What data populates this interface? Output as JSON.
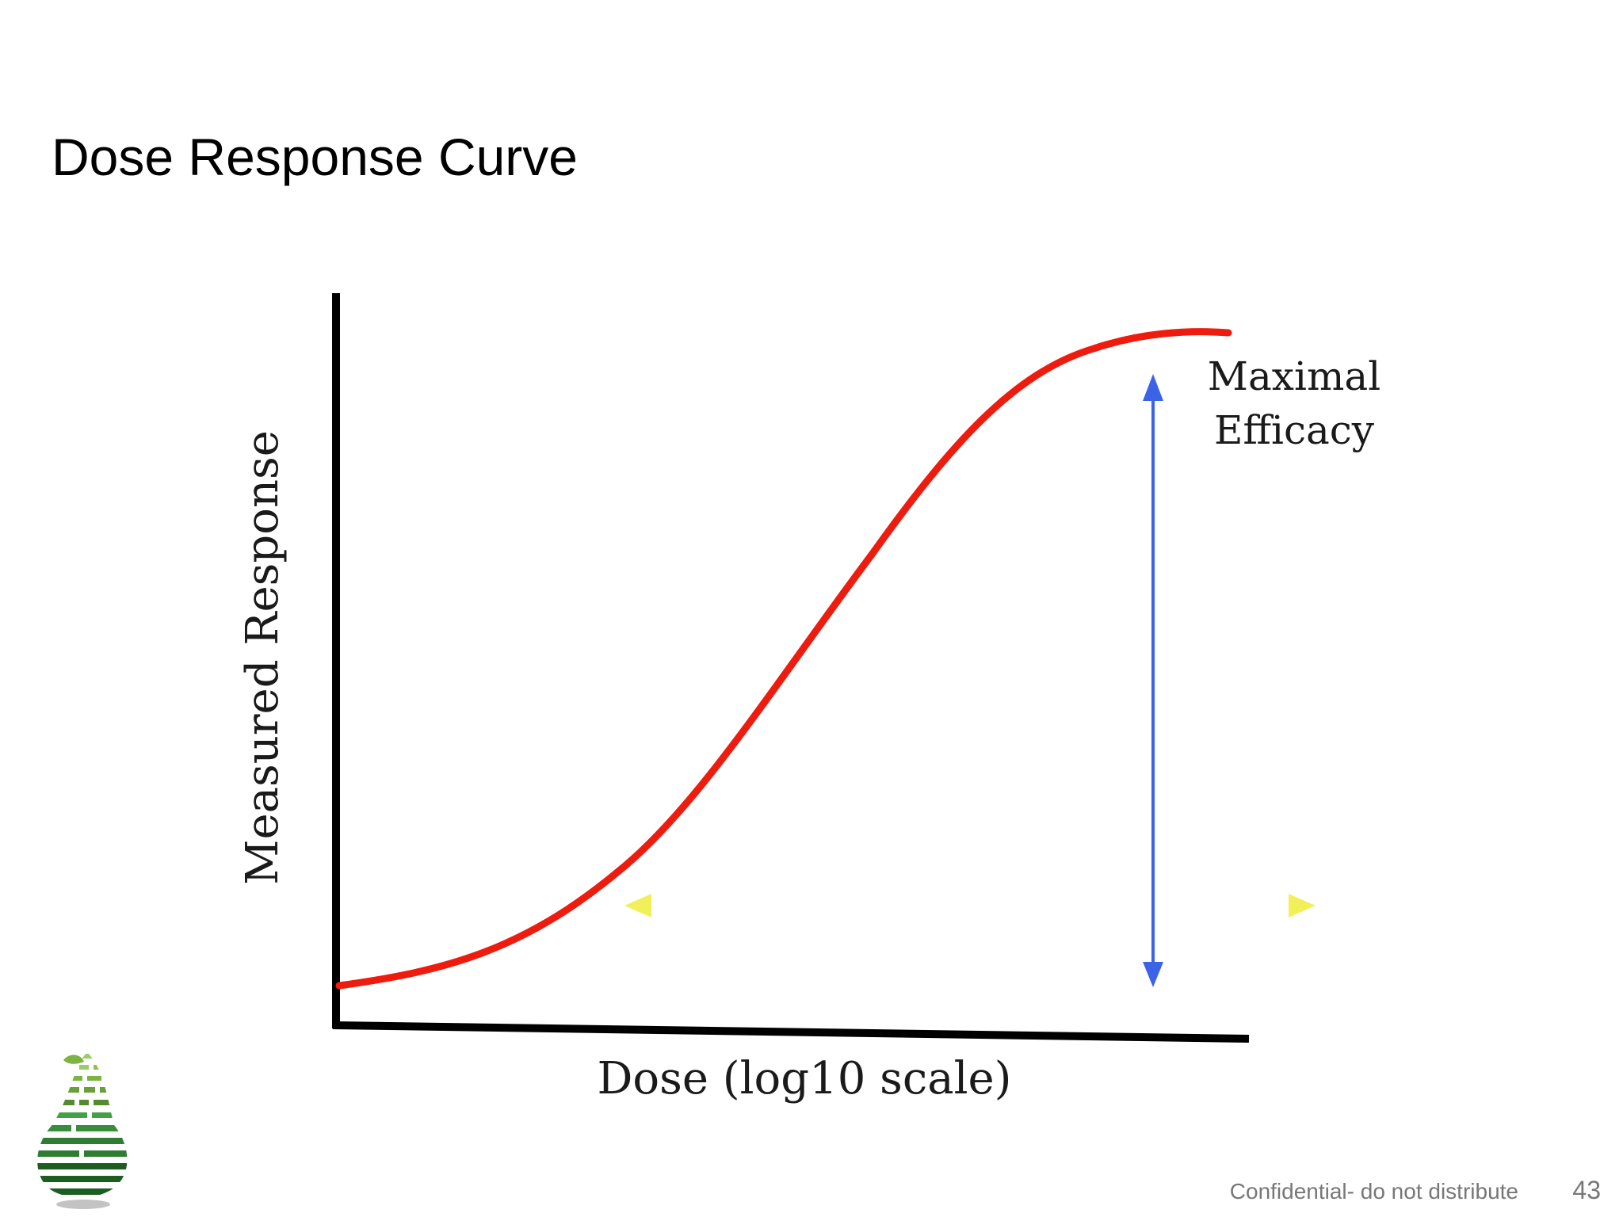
{
  "slide": {
    "title": "Dose Response Curve",
    "footer": "Confidential- do not distribute",
    "page_number": "43"
  },
  "figure": {
    "y_axis_label": "Measured Response",
    "x_axis_label": "Dose (log10 scale)",
    "annotation_line1": "Maximal",
    "annotation_line2": "Efficacy"
  },
  "colors": {
    "curve": "#ee1c0e",
    "efficacy_arrow": "#3b63e8",
    "potency_arrow": "#f2f05a",
    "axes": "#000000",
    "logo_green": "#2e7d32"
  },
  "icons": {
    "logo": "pear-logo-icon"
  }
}
